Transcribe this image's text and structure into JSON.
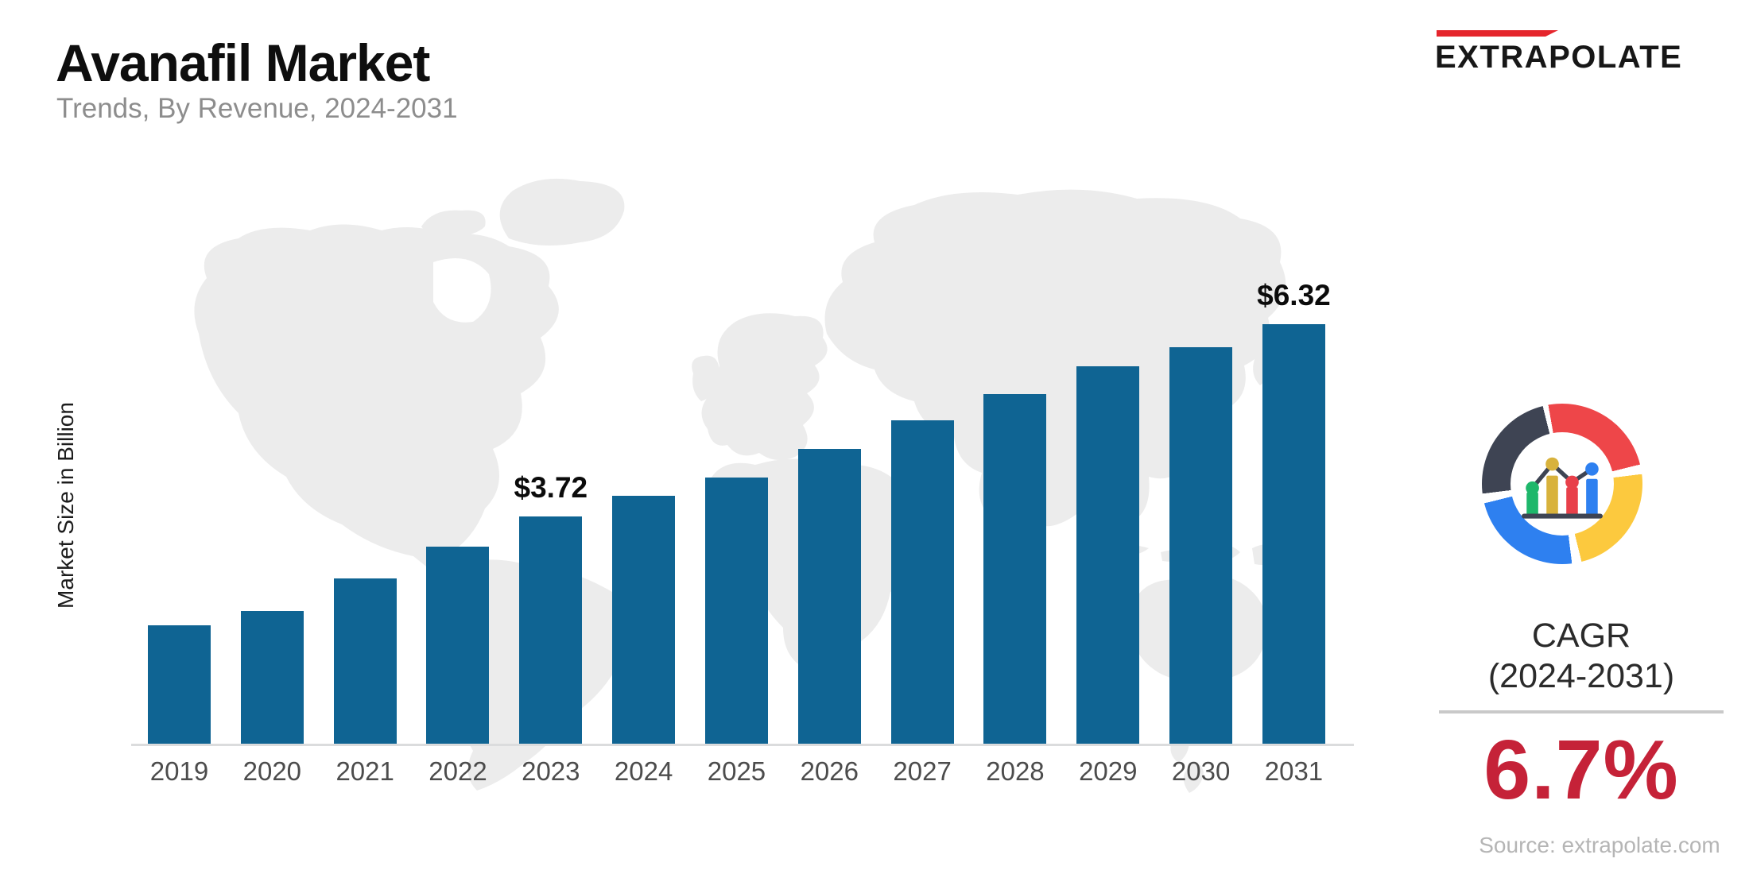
{
  "header": {
    "title": "Avanafil Market",
    "subtitle": "Trends, By Revenue, 2024-2031"
  },
  "brand": {
    "logo_text": "EXTRAPOLATE",
    "accent_color": "#e5252c"
  },
  "chart_data": {
    "type": "bar",
    "title": "Avanafil Market",
    "subtitle": "Trends, By Revenue, 2024-2031",
    "ylabel": "Market Size in Billion",
    "xlabel": "",
    "unit": "USD Billion",
    "bar_color": "#0f6493",
    "grid": false,
    "legend": false,
    "categories": [
      "2019",
      "2020",
      "2021",
      "2022",
      "2023",
      "2024",
      "2025",
      "2026",
      "2027",
      "2028",
      "2029",
      "2030",
      "2031"
    ],
    "values": [
      2.25,
      2.44,
      2.88,
      3.31,
      3.72,
      4.0,
      4.25,
      4.63,
      5.02,
      5.38,
      5.75,
      6.01,
      6.32
    ],
    "data_labels": [
      {
        "category": "2023",
        "text": "$3.72"
      },
      {
        "category": "2031",
        "text": "$6.32"
      }
    ]
  },
  "side_panel": {
    "cagr_label": "CAGR",
    "cagr_period": "(2024-2031)",
    "cagr_value": "6.7%",
    "value_color": "#c52238",
    "icon_colors": {
      "red": "#ee4649",
      "yellow": "#fcc93e",
      "blue": "#2e80f0",
      "dark": "#3e4453",
      "green": "#1eb76b",
      "gold": "#d8b23c",
      "bar_red": "#e8404a"
    }
  },
  "footer": {
    "source": "Source: extrapolate.com"
  }
}
